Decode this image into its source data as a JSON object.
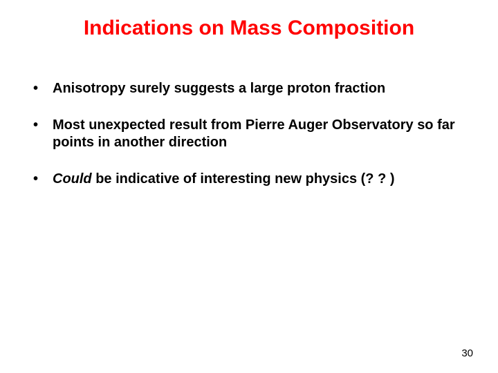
{
  "slide": {
    "title": "Indications on Mass Composition",
    "title_color": "#ff0000",
    "title_fontsize": 30,
    "background_color": "#ffffff",
    "bullets": [
      {
        "text": "Anisotropy surely suggests a large proton fraction",
        "italic_word": ""
      },
      {
        "text": "Most unexpected result from Pierre Auger Observatory so far points in another direction",
        "italic_word": ""
      },
      {
        "italic_word": "Could",
        "rest": " be indicative of interesting new physics (? ? )"
      }
    ],
    "bullet_color": "#000000",
    "bullet_fontsize": 20,
    "page_number": "30"
  }
}
